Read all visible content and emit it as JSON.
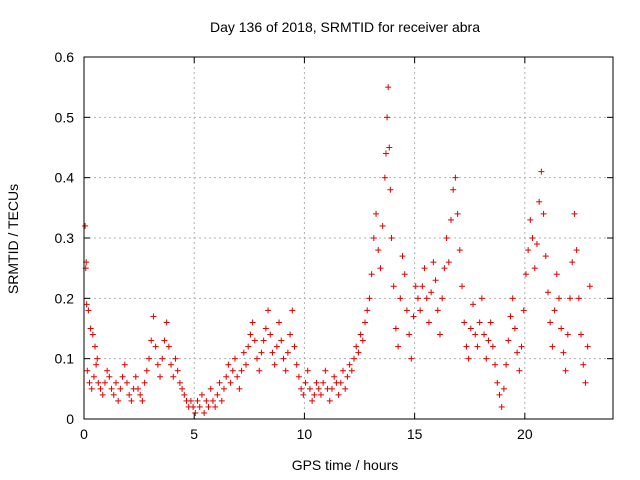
{
  "chart_data": {
    "type": "scatter",
    "title": "Day 136 of 2018, SRMTID for receiver abra",
    "xlabel": "GPS time / hours",
    "ylabel": "SRMTID / TECUs",
    "xlim": [
      0,
      24
    ],
    "ylim": [
      0,
      0.6
    ],
    "xticks": [
      "0",
      "5",
      "10",
      "15",
      "20"
    ],
    "yticks": [
      "0",
      "0.1",
      "0.2",
      "0.3",
      "0.4",
      "0.5",
      "0.6"
    ],
    "grid": true,
    "marker": "+",
    "color": "#e00000",
    "series": [
      {
        "name": "SRMTID",
        "points": [
          [
            0.05,
            0.32
          ],
          [
            0.1,
            0.26
          ],
          [
            0.08,
            0.25
          ],
          [
            0.12,
            0.19
          ],
          [
            0.2,
            0.18
          ],
          [
            0.3,
            0.15
          ],
          [
            0.4,
            0.14
          ],
          [
            0.5,
            0.12
          ],
          [
            0.6,
            0.1
          ],
          [
            0.15,
            0.08
          ],
          [
            0.25,
            0.06
          ],
          [
            0.35,
            0.05
          ],
          [
            0.45,
            0.07
          ],
          [
            0.55,
            0.09
          ],
          [
            0.65,
            0.06
          ],
          [
            0.75,
            0.05
          ],
          [
            0.85,
            0.04
          ],
          [
            0.95,
            0.06
          ],
          [
            1.05,
            0.08
          ],
          [
            1.15,
            0.07
          ],
          [
            1.25,
            0.05
          ],
          [
            1.35,
            0.04
          ],
          [
            1.45,
            0.06
          ],
          [
            1.55,
            0.03
          ],
          [
            1.65,
            0.05
          ],
          [
            1.75,
            0.07
          ],
          [
            1.85,
            0.09
          ],
          [
            1.95,
            0.06
          ],
          [
            2.05,
            0.04
          ],
          [
            2.15,
            0.03
          ],
          [
            2.25,
            0.05
          ],
          [
            2.35,
            0.07
          ],
          [
            2.45,
            0.05
          ],
          [
            2.55,
            0.04
          ],
          [
            2.65,
            0.03
          ],
          [
            2.75,
            0.06
          ],
          [
            2.85,
            0.08
          ],
          [
            2.95,
            0.1
          ],
          [
            3.05,
            0.13
          ],
          [
            3.15,
            0.17
          ],
          [
            3.25,
            0.12
          ],
          [
            3.35,
            0.09
          ],
          [
            3.45,
            0.07
          ],
          [
            3.55,
            0.1
          ],
          [
            3.65,
            0.13
          ],
          [
            3.75,
            0.16
          ],
          [
            3.85,
            0.12
          ],
          [
            3.95,
            0.09
          ],
          [
            4.05,
            0.07
          ],
          [
            4.15,
            0.1
          ],
          [
            4.25,
            0.08
          ],
          [
            4.35,
            0.06
          ],
          [
            4.45,
            0.05
          ],
          [
            4.55,
            0.04
          ],
          [
            4.65,
            0.03
          ],
          [
            4.75,
            0.02
          ],
          [
            4.85,
            0.03
          ],
          [
            4.95,
            0.02
          ],
          [
            5.05,
            0.01
          ],
          [
            5.15,
            0.03
          ],
          [
            5.25,
            0.02
          ],
          [
            5.35,
            0.04
          ],
          [
            5.45,
            0.01
          ],
          [
            5.55,
            0.03
          ],
          [
            5.65,
            0.02
          ],
          [
            5.75,
            0.05
          ],
          [
            5.85,
            0.03
          ],
          [
            5.95,
            0.02
          ],
          [
            6.05,
            0.04
          ],
          [
            6.15,
            0.06
          ],
          [
            6.25,
            0.03
          ],
          [
            6.35,
            0.05
          ],
          [
            6.45,
            0.07
          ],
          [
            6.55,
            0.09
          ],
          [
            6.65,
            0.06
          ],
          [
            6.75,
            0.08
          ],
          [
            6.85,
            0.1
          ],
          [
            6.95,
            0.07
          ],
          [
            7.05,
            0.05
          ],
          [
            7.15,
            0.08
          ],
          [
            7.25,
            0.11
          ],
          [
            7.35,
            0.09
          ],
          [
            7.45,
            0.12
          ],
          [
            7.55,
            0.14
          ],
          [
            7.65,
            0.16
          ],
          [
            7.75,
            0.13
          ],
          [
            7.85,
            0.1
          ],
          [
            7.95,
            0.08
          ],
          [
            8.05,
            0.11
          ],
          [
            8.15,
            0.13
          ],
          [
            8.25,
            0.15
          ],
          [
            8.35,
            0.18
          ],
          [
            8.45,
            0.14
          ],
          [
            8.55,
            0.11
          ],
          [
            8.65,
            0.09
          ],
          [
            8.75,
            0.12
          ],
          [
            8.85,
            0.16
          ],
          [
            8.95,
            0.13
          ],
          [
            9.05,
            0.1
          ],
          [
            9.15,
            0.08
          ],
          [
            9.25,
            0.11
          ],
          [
            9.35,
            0.14
          ],
          [
            9.45,
            0.18
          ],
          [
            9.55,
            0.12
          ],
          [
            9.65,
            0.09
          ],
          [
            9.75,
            0.07
          ],
          [
            9.85,
            0.05
          ],
          [
            9.95,
            0.04
          ],
          [
            10.05,
            0.06
          ],
          [
            10.15,
            0.08
          ],
          [
            10.25,
            0.05
          ],
          [
            10.35,
            0.03
          ],
          [
            10.45,
            0.04
          ],
          [
            10.55,
            0.06
          ],
          [
            10.65,
            0.05
          ],
          [
            10.75,
            0.04
          ],
          [
            10.85,
            0.06
          ],
          [
            10.95,
            0.08
          ],
          [
            11.05,
            0.05
          ],
          [
            11.15,
            0.03
          ],
          [
            11.25,
            0.05
          ],
          [
            11.35,
            0.07
          ],
          [
            11.45,
            0.06
          ],
          [
            11.55,
            0.04
          ],
          [
            11.65,
            0.06
          ],
          [
            11.75,
            0.08
          ],
          [
            11.85,
            0.05
          ],
          [
            11.95,
            0.07
          ],
          [
            12.05,
            0.09
          ],
          [
            12.15,
            0.08
          ],
          [
            12.25,
            0.1
          ],
          [
            12.35,
            0.12
          ],
          [
            12.45,
            0.11
          ],
          [
            12.55,
            0.14
          ],
          [
            12.65,
            0.13
          ],
          [
            12.75,
            0.16
          ],
          [
            12.85,
            0.18
          ],
          [
            12.95,
            0.2
          ],
          [
            13.05,
            0.24
          ],
          [
            13.15,
            0.3
          ],
          [
            13.25,
            0.34
          ],
          [
            13.35,
            0.28
          ],
          [
            13.45,
            0.25
          ],
          [
            13.55,
            0.32
          ],
          [
            13.65,
            0.4
          ],
          [
            13.7,
            0.44
          ],
          [
            13.75,
            0.5
          ],
          [
            13.8,
            0.55
          ],
          [
            13.85,
            0.45
          ],
          [
            13.9,
            0.38
          ],
          [
            13.95,
            0.3
          ],
          [
            14.05,
            0.22
          ],
          [
            14.15,
            0.15
          ],
          [
            14.25,
            0.12
          ],
          [
            14.35,
            0.2
          ],
          [
            14.45,
            0.27
          ],
          [
            14.55,
            0.24
          ],
          [
            14.65,
            0.18
          ],
          [
            14.75,
            0.14
          ],
          [
            14.85,
            0.1
          ],
          [
            14.95,
            0.17
          ],
          [
            15.05,
            0.22
          ],
          [
            15.15,
            0.2
          ],
          [
            15.25,
            0.18
          ],
          [
            15.35,
            0.22
          ],
          [
            15.45,
            0.25
          ],
          [
            15.55,
            0.2
          ],
          [
            15.65,
            0.16
          ],
          [
            15.75,
            0.21
          ],
          [
            15.85,
            0.26
          ],
          [
            15.95,
            0.23
          ],
          [
            16.05,
            0.18
          ],
          [
            16.15,
            0.14
          ],
          [
            16.25,
            0.2
          ],
          [
            16.35,
            0.25
          ],
          [
            16.45,
            0.3
          ],
          [
            16.55,
            0.26
          ],
          [
            16.65,
            0.33
          ],
          [
            16.75,
            0.38
          ],
          [
            16.85,
            0.4
          ],
          [
            16.95,
            0.34
          ],
          [
            17.05,
            0.28
          ],
          [
            17.15,
            0.22
          ],
          [
            17.25,
            0.16
          ],
          [
            17.35,
            0.12
          ],
          [
            17.45,
            0.1
          ],
          [
            17.55,
            0.15
          ],
          [
            17.65,
            0.19
          ],
          [
            17.75,
            0.14
          ],
          [
            17.85,
            0.12
          ],
          [
            17.95,
            0.16
          ],
          [
            18.05,
            0.2
          ],
          [
            18.15,
            0.14
          ],
          [
            18.25,
            0.1
          ],
          [
            18.35,
            0.13
          ],
          [
            18.45,
            0.16
          ],
          [
            18.55,
            0.12
          ],
          [
            18.65,
            0.09
          ],
          [
            18.75,
            0.06
          ],
          [
            18.85,
            0.04
          ],
          [
            18.95,
            0.02
          ],
          [
            19.05,
            0.05
          ],
          [
            19.15,
            0.09
          ],
          [
            19.25,
            0.13
          ],
          [
            19.35,
            0.17
          ],
          [
            19.45,
            0.2
          ],
          [
            19.55,
            0.15
          ],
          [
            19.65,
            0.11
          ],
          [
            19.75,
            0.08
          ],
          [
            19.85,
            0.12
          ],
          [
            19.95,
            0.18
          ],
          [
            20.05,
            0.24
          ],
          [
            20.15,
            0.28
          ],
          [
            20.25,
            0.33
          ],
          [
            20.35,
            0.3
          ],
          [
            20.45,
            0.25
          ],
          [
            20.55,
            0.29
          ],
          [
            20.65,
            0.36
          ],
          [
            20.75,
            0.41
          ],
          [
            20.85,
            0.34
          ],
          [
            20.95,
            0.27
          ],
          [
            21.05,
            0.21
          ],
          [
            21.15,
            0.16
          ],
          [
            21.25,
            0.12
          ],
          [
            21.35,
            0.18
          ],
          [
            21.45,
            0.24
          ],
          [
            21.55,
            0.2
          ],
          [
            21.65,
            0.15
          ],
          [
            21.75,
            0.11
          ],
          [
            21.85,
            0.08
          ],
          [
            21.95,
            0.14
          ],
          [
            22.05,
            0.2
          ],
          [
            22.15,
            0.26
          ],
          [
            22.25,
            0.34
          ],
          [
            22.35,
            0.28
          ],
          [
            22.45,
            0.2
          ],
          [
            22.55,
            0.14
          ],
          [
            22.65,
            0.09
          ],
          [
            22.75,
            0.06
          ],
          [
            22.85,
            0.12
          ],
          [
            22.95,
            0.22
          ]
        ]
      }
    ]
  }
}
